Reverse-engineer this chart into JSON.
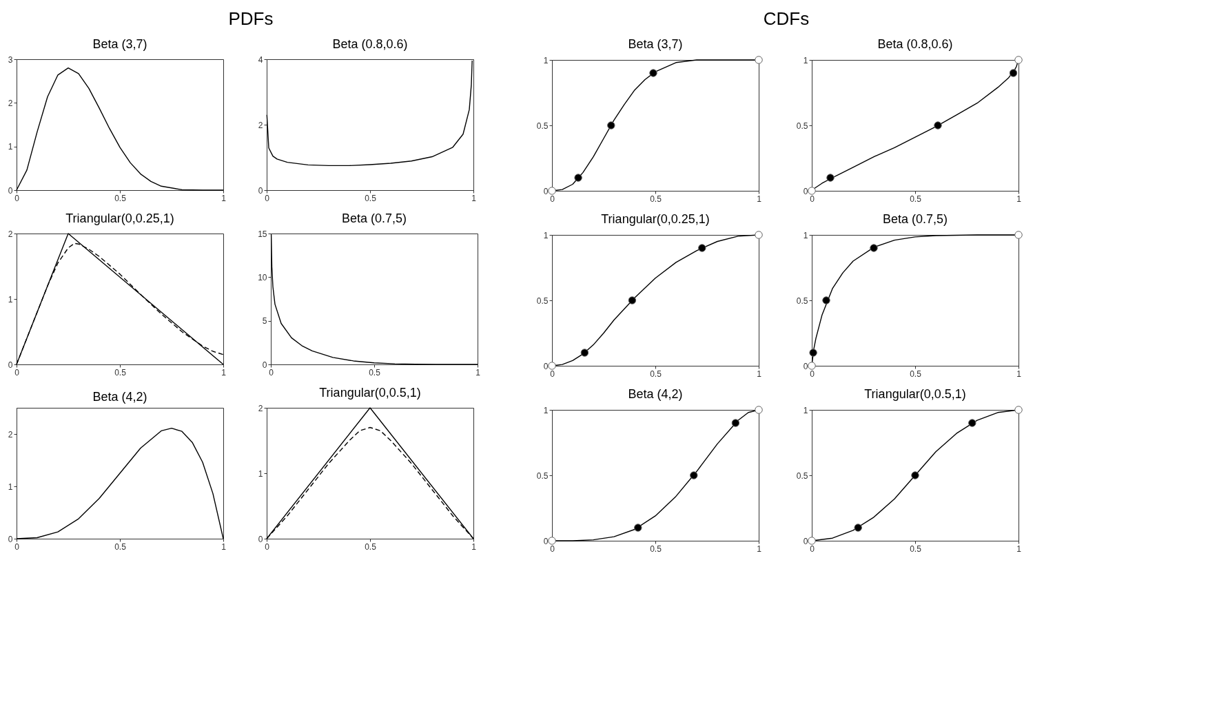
{
  "chart_data": [
    {
      "type": "other",
      "title": "PDFs"
    },
    {
      "type": "other",
      "title": "CDFs"
    },
    {
      "type": "line",
      "title": "Beta (3,7)",
      "xlim": [
        0,
        1
      ],
      "xticks": [
        0,
        0.5,
        1
      ],
      "ylim": [
        0,
        3
      ],
      "yticks": [
        0,
        1,
        2,
        3
      ],
      "grid": false,
      "series": [
        {
          "color": "#000000",
          "line_style": "solid",
          "x": [
            0,
            0.05,
            0.1,
            0.15,
            0.2,
            0.25,
            0.3,
            0.35,
            0.4,
            0.45,
            0.5,
            0.55,
            0.6,
            0.65,
            0.7,
            0.8,
            0.9,
            1
          ],
          "values": [
            0,
            0.46,
            1.34,
            2.14,
            2.64,
            2.8,
            2.67,
            2.33,
            1.88,
            1.41,
            0.98,
            0.63,
            0.37,
            0.2,
            0.09,
            0.01,
            0,
            0
          ]
        }
      ]
    },
    {
      "type": "line",
      "title": "Beta (0.8,0.6)",
      "xlim": [
        0,
        1
      ],
      "xticks": [
        0,
        0.5,
        1
      ],
      "ylim": [
        0,
        4
      ],
      "yticks": [
        0,
        2,
        4
      ],
      "grid": false,
      "series": [
        {
          "color": "#000000",
          "line_style": "solid",
          "x": [
            0.001,
            0.01,
            0.03,
            0.05,
            0.1,
            0.2,
            0.3,
            0.4,
            0.5,
            0.6,
            0.7,
            0.8,
            0.9,
            0.95,
            0.98,
            0.99,
            0.994
          ],
          "values": [
            2.3,
            1.29,
            1.04,
            0.95,
            0.85,
            0.77,
            0.75,
            0.75,
            0.78,
            0.82,
            0.89,
            1.02,
            1.31,
            1.71,
            2.46,
            3.23,
            3.96
          ]
        }
      ]
    },
    {
      "type": "line",
      "title": "Beta (3,7)",
      "xlim": [
        0,
        1
      ],
      "xticks": [
        0,
        0.5,
        1
      ],
      "ylim": [
        0,
        1
      ],
      "yticks": [
        0,
        0.5,
        1
      ],
      "grid": false,
      "series": [
        {
          "color": "#000000",
          "line_style": "solid",
          "x": [
            0,
            0.05,
            0.1,
            0.15,
            0.2,
            0.25,
            0.3,
            0.35,
            0.4,
            0.45,
            0.5,
            0.6,
            0.7,
            0.8,
            1
          ],
          "values": [
            0,
            0.01,
            0.05,
            0.14,
            0.26,
            0.4,
            0.54,
            0.66,
            0.77,
            0.85,
            0.91,
            0.98,
            1,
            1,
            1
          ]
        },
        {
          "type": "scatter",
          "marker": "circle",
          "color": "#000000",
          "x": [
            0.127,
            0.286,
            0.49
          ],
          "values": [
            0.1,
            0.5,
            0.9
          ]
        },
        {
          "type": "scatter",
          "marker": "circle",
          "color": "#ffffff",
          "x": [
            0,
            1
          ],
          "values": [
            0,
            1
          ]
        }
      ]
    },
    {
      "type": "line",
      "title": "Beta (0.8,0.6)",
      "xlim": [
        0,
        1
      ],
      "xticks": [
        0,
        0.5,
        1
      ],
      "ylim": [
        0,
        1
      ],
      "yticks": [
        0,
        0.5,
        1
      ],
      "grid": false,
      "series": [
        {
          "color": "#000000",
          "line_style": "solid",
          "x": [
            0,
            0.01,
            0.05,
            0.1,
            0.2,
            0.3,
            0.4,
            0.5,
            0.6,
            0.7,
            0.8,
            0.9,
            0.95,
            0.98,
            0.99,
            1
          ],
          "values": [
            0,
            0.016,
            0.058,
            0.1,
            0.18,
            0.26,
            0.33,
            0.41,
            0.49,
            0.58,
            0.67,
            0.79,
            0.86,
            0.92,
            0.95,
            1
          ]
        },
        {
          "type": "scatter",
          "marker": "circle",
          "color": "#000000",
          "x": [
            0.09,
            0.61,
            0.975
          ],
          "values": [
            0.1,
            0.5,
            0.9
          ]
        },
        {
          "type": "scatter",
          "marker": "circle",
          "color": "#ffffff",
          "x": [
            0,
            1
          ],
          "values": [
            0,
            1
          ]
        }
      ]
    },
    {
      "type": "line",
      "title": "Triangular(0,0.25,1)",
      "xlim": [
        0,
        1
      ],
      "xticks": [
        0,
        0.5,
        1
      ],
      "ylim": [
        0,
        2
      ],
      "yticks": [
        0,
        1,
        2
      ],
      "grid": false,
      "series": [
        {
          "color": "#000000",
          "line_style": "solid",
          "x": [
            0,
            0.25,
            1
          ],
          "values": [
            0,
            2,
            0
          ]
        },
        {
          "color": "#000000",
          "line_style": "dashed",
          "x": [
            0,
            0.05,
            0.1,
            0.15,
            0.2,
            0.25,
            0.28,
            0.3,
            0.35,
            0.4,
            0.5,
            0.6,
            0.7,
            0.8,
            0.9,
            0.95,
            1
          ],
          "values": [
            0,
            0.4,
            0.8,
            1.2,
            1.55,
            1.78,
            1.85,
            1.84,
            1.76,
            1.65,
            1.38,
            1.07,
            0.77,
            0.5,
            0.28,
            0.2,
            0.15
          ]
        }
      ]
    },
    {
      "type": "line",
      "title": "Beta (0.7,5)",
      "xlim": [
        0,
        1
      ],
      "xticks": [
        0,
        0.5,
        1
      ],
      "ylim": [
        0,
        15
      ],
      "yticks": [
        0,
        5,
        10,
        15
      ],
      "grid": false,
      "series": [
        {
          "color": "#000000",
          "line_style": "solid",
          "x": [
            0.002,
            0.005,
            0.01,
            0.02,
            0.05,
            0.1,
            0.15,
            0.2,
            0.3,
            0.4,
            0.5,
            0.6,
            0.7,
            0.8,
            1
          ],
          "values": [
            14.9,
            11.2,
            8.9,
            6.9,
            4.7,
            3.05,
            2.15,
            1.55,
            0.8,
            0.4,
            0.18,
            0.07,
            0.02,
            0,
            0
          ]
        }
      ]
    },
    {
      "type": "line",
      "title": "Triangular(0,0.25,1)",
      "xlim": [
        0,
        1
      ],
      "xticks": [
        0,
        0.5,
        1
      ],
      "ylim": [
        0,
        1
      ],
      "yticks": [
        0,
        0.5,
        1
      ],
      "grid": false,
      "series": [
        {
          "color": "#000000",
          "line_style": "solid",
          "x": [
            0,
            0.05,
            0.1,
            0.15,
            0.2,
            0.25,
            0.3,
            0.4,
            0.5,
            0.6,
            0.7,
            0.8,
            0.9,
            1
          ],
          "values": [
            0,
            0.01,
            0.04,
            0.09,
            0.16,
            0.25,
            0.35,
            0.52,
            0.67,
            0.79,
            0.88,
            0.95,
            0.99,
            1
          ]
        },
        {
          "type": "scatter",
          "marker": "circle",
          "color": "#000000",
          "x": [
            0.158,
            0.388,
            0.726
          ],
          "values": [
            0.1,
            0.5,
            0.9
          ]
        },
        {
          "type": "scatter",
          "marker": "circle",
          "color": "#ffffff",
          "x": [
            0,
            1
          ],
          "values": [
            0,
            1
          ]
        }
      ]
    },
    {
      "type": "line",
      "title": "Beta (0.7,5)",
      "xlim": [
        0,
        1
      ],
      "xticks": [
        0,
        0.5,
        1
      ],
      "ylim": [
        0,
        1
      ],
      "yticks": [
        0,
        0.5,
        1
      ],
      "grid": false,
      "series": [
        {
          "color": "#000000",
          "line_style": "solid",
          "x": [
            0,
            0.01,
            0.02,
            0.05,
            0.1,
            0.15,
            0.2,
            0.3,
            0.4,
            0.5,
            0.6,
            0.8,
            1
          ],
          "values": [
            0,
            0.13,
            0.21,
            0.39,
            0.59,
            0.71,
            0.8,
            0.905,
            0.96,
            0.985,
            0.995,
            1,
            1
          ]
        },
        {
          "type": "scatter",
          "marker": "circle",
          "color": "#000000",
          "x": [
            0.007,
            0.07,
            0.3
          ],
          "values": [
            0.1,
            0.5,
            0.9
          ]
        },
        {
          "type": "scatter",
          "marker": "circle",
          "color": "#ffffff",
          "x": [
            0,
            1
          ],
          "values": [
            0,
            1
          ]
        }
      ]
    },
    {
      "type": "line",
      "title": "Beta (4,2)",
      "xlim": [
        0,
        1
      ],
      "xticks": [
        0,
        0.5,
        1
      ],
      "ylim": [
        0,
        2.5
      ],
      "yticks": [
        0,
        1,
        2
      ],
      "grid": false,
      "series": [
        {
          "color": "#000000",
          "line_style": "solid",
          "x": [
            0,
            0.1,
            0.2,
            0.3,
            0.4,
            0.5,
            0.6,
            0.7,
            0.75,
            0.8,
            0.85,
            0.9,
            0.95,
            1
          ],
          "values": [
            0,
            0.02,
            0.13,
            0.38,
            0.77,
            1.25,
            1.73,
            2.06,
            2.11,
            2.05,
            1.84,
            1.46,
            0.86,
            0
          ]
        }
      ]
    },
    {
      "type": "line",
      "title": "Triangular(0,0.5,1)",
      "xlim": [
        0,
        1
      ],
      "xticks": [
        0,
        0.5,
        1
      ],
      "ylim": [
        0,
        2
      ],
      "yticks": [
        0,
        1,
        2
      ],
      "grid": false,
      "series": [
        {
          "color": "#000000",
          "line_style": "solid",
          "x": [
            0,
            0.5,
            1
          ],
          "values": [
            0,
            2,
            0
          ]
        },
        {
          "color": "#000000",
          "line_style": "dashed",
          "x": [
            0,
            0.1,
            0.2,
            0.3,
            0.4,
            0.45,
            0.5,
            0.55,
            0.6,
            0.7,
            0.8,
            0.9,
            1
          ],
          "values": [
            0,
            0.35,
            0.75,
            1.15,
            1.5,
            1.65,
            1.7,
            1.65,
            1.5,
            1.15,
            0.75,
            0.35,
            0
          ]
        }
      ]
    },
    {
      "type": "line",
      "title": "Beta (4,2)",
      "xlim": [
        0,
        1
      ],
      "xticks": [
        0,
        0.5,
        1
      ],
      "ylim": [
        0,
        1
      ],
      "yticks": [
        0,
        0.5,
        1
      ],
      "grid": false,
      "series": [
        {
          "color": "#000000",
          "line_style": "solid",
          "x": [
            0,
            0.1,
            0.2,
            0.3,
            0.4,
            0.5,
            0.6,
            0.7,
            0.8,
            0.9,
            0.95,
            1
          ],
          "values": [
            0,
            0,
            0.007,
            0.031,
            0.087,
            0.19,
            0.34,
            0.53,
            0.74,
            0.92,
            0.98,
            1
          ]
        },
        {
          "type": "scatter",
          "marker": "circle",
          "color": "#000000",
          "x": [
            0.416,
            0.686,
            0.888
          ],
          "values": [
            0.1,
            0.5,
            0.9
          ]
        },
        {
          "type": "scatter",
          "marker": "circle",
          "color": "#ffffff",
          "x": [
            0,
            1
          ],
          "values": [
            0,
            1
          ]
        }
      ]
    },
    {
      "type": "line",
      "title": "Triangular(0,0.5,1)",
      "xlim": [
        0,
        1
      ],
      "xticks": [
        0,
        0.5,
        1
      ],
      "ylim": [
        0,
        1
      ],
      "yticks": [
        0,
        0.5,
        1
      ],
      "grid": false,
      "series": [
        {
          "color": "#000000",
          "line_style": "solid",
          "x": [
            0,
            0.1,
            0.2,
            0.3,
            0.4,
            0.5,
            0.6,
            0.7,
            0.8,
            0.9,
            1
          ],
          "values": [
            0,
            0.02,
            0.08,
            0.18,
            0.32,
            0.5,
            0.68,
            0.82,
            0.92,
            0.98,
            1
          ]
        },
        {
          "type": "scatter",
          "marker": "circle",
          "color": "#000000",
          "x": [
            0.224,
            0.5,
            0.776
          ],
          "values": [
            0.1,
            0.5,
            0.9
          ]
        },
        {
          "type": "scatter",
          "marker": "circle",
          "color": "#ffffff",
          "x": [
            0,
            1
          ],
          "values": [
            0,
            1
          ]
        }
      ]
    }
  ]
}
